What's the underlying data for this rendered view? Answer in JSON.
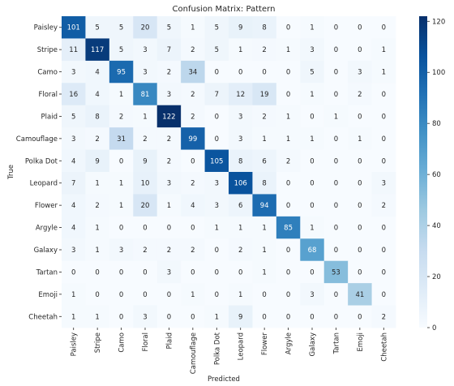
{
  "chart_data": {
    "type": "heatmap",
    "title": "Confusion Matrix: Pattern",
    "xlabel": "Predicted",
    "ylabel": "True",
    "labels": [
      "Paisley",
      "Stripe",
      "Camo",
      "Floral",
      "Plaid",
      "Camouflage",
      "Polka Dot",
      "Leopard",
      "Flower",
      "Argyle",
      "Galaxy",
      "Tartan",
      "Emoji",
      "Cheetah"
    ],
    "matrix": [
      [
        101,
        5,
        5,
        20,
        5,
        1,
        5,
        9,
        8,
        0,
        1,
        0,
        0,
        0
      ],
      [
        11,
        117,
        5,
        3,
        7,
        2,
        5,
        1,
        2,
        1,
        3,
        0,
        0,
        1
      ],
      [
        3,
        4,
        95,
        3,
        2,
        34,
        0,
        0,
        0,
        0,
        5,
        0,
        3,
        1
      ],
      [
        16,
        4,
        1,
        81,
        3,
        2,
        7,
        12,
        19,
        0,
        1,
        0,
        2,
        0
      ],
      [
        5,
        8,
        2,
        1,
        122,
        2,
        0,
        3,
        2,
        1,
        0,
        1,
        0,
        0
      ],
      [
        3,
        2,
        31,
        2,
        2,
        99,
        0,
        3,
        1,
        1,
        1,
        0,
        1,
        0
      ],
      [
        4,
        9,
        0,
        9,
        2,
        0,
        105,
        8,
        6,
        2,
        0,
        0,
        0,
        0
      ],
      [
        7,
        1,
        1,
        10,
        3,
        2,
        3,
        106,
        8,
        0,
        0,
        0,
        0,
        3
      ],
      [
        4,
        2,
        1,
        20,
        1,
        4,
        3,
        6,
        94,
        0,
        0,
        0,
        0,
        2
      ],
      [
        4,
        1,
        0,
        0,
        0,
        0,
        1,
        1,
        1,
        85,
        1,
        0,
        0,
        0
      ],
      [
        3,
        1,
        3,
        2,
        2,
        2,
        0,
        2,
        1,
        0,
        68,
        0,
        0,
        0
      ],
      [
        0,
        0,
        0,
        0,
        3,
        0,
        0,
        0,
        1,
        0,
        0,
        53,
        0,
        0
      ],
      [
        1,
        0,
        0,
        0,
        0,
        1,
        0,
        1,
        0,
        0,
        3,
        0,
        41,
        0
      ],
      [
        1,
        1,
        0,
        3,
        0,
        0,
        1,
        9,
        0,
        0,
        0,
        0,
        0,
        2
      ]
    ],
    "colorbar": {
      "colormap": "Blues",
      "vmin": 0,
      "vmax": 122,
      "ticks": [
        0,
        20,
        40,
        60,
        80,
        100,
        120
      ]
    }
  }
}
